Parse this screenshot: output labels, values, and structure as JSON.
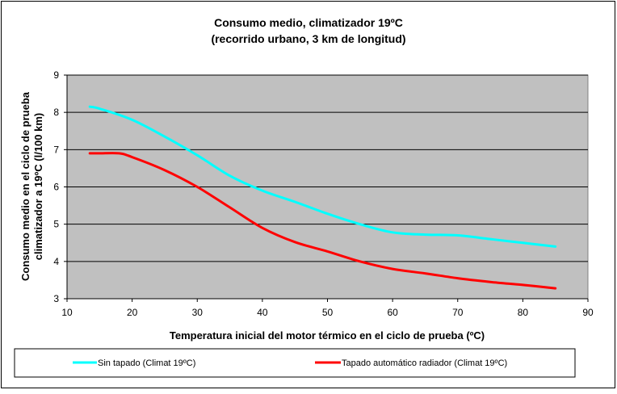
{
  "chart_data": {
    "type": "line",
    "title": "Consumo medio, climatizador 19ºC",
    "subtitle": "(recorrido urbano, 3 km de longitud)",
    "xlabel": "Temperatura inicial del motor térmico en el ciclo de prueba (ºC)",
    "ylabel_line1": "Consumo medio en el ciclo de prueba",
    "ylabel_line2": "climatizador a 19ºC (l/100 km)",
    "xlim": [
      10,
      90
    ],
    "ylim": [
      3,
      9
    ],
    "x_ticks": [
      "10",
      "20",
      "30",
      "40",
      "50",
      "60",
      "70",
      "80",
      "90"
    ],
    "y_ticks": [
      "3",
      "4",
      "5",
      "6",
      "7",
      "8",
      "9"
    ],
    "grid": "horizontal",
    "plot_background": "#c0c0c0",
    "legend_position": "bottom",
    "series": [
      {
        "name": "Sin tapado (Climat 19ºC)",
        "color": "#00ffff",
        "points": [
          [
            13.5,
            8.15
          ],
          [
            15,
            8.1
          ],
          [
            20,
            7.8
          ],
          [
            25,
            7.35
          ],
          [
            30,
            6.85
          ],
          [
            35,
            6.3
          ],
          [
            40,
            5.9
          ],
          [
            45,
            5.6
          ],
          [
            50,
            5.28
          ],
          [
            55,
            5.0
          ],
          [
            60,
            4.78
          ],
          [
            65,
            4.72
          ],
          [
            70,
            4.7
          ],
          [
            75,
            4.6
          ],
          [
            80,
            4.5
          ],
          [
            85,
            4.4
          ]
        ]
      },
      {
        "name": "Tapado automático radiador (Climat 19ºC)",
        "color": "#ff0000",
        "points": [
          [
            13.5,
            6.9
          ],
          [
            15,
            6.9
          ],
          [
            18,
            6.9
          ],
          [
            20,
            6.8
          ],
          [
            25,
            6.45
          ],
          [
            30,
            6.0
          ],
          [
            35,
            5.45
          ],
          [
            40,
            4.9
          ],
          [
            45,
            4.52
          ],
          [
            50,
            4.27
          ],
          [
            55,
            4.0
          ],
          [
            60,
            3.8
          ],
          [
            65,
            3.68
          ],
          [
            70,
            3.55
          ],
          [
            75,
            3.45
          ],
          [
            80,
            3.37
          ],
          [
            85,
            3.28
          ]
        ]
      }
    ]
  }
}
